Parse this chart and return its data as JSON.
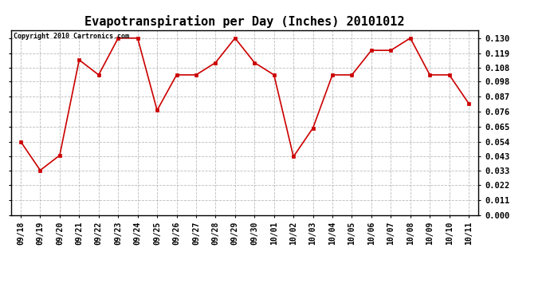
{
  "title": "Evapotranspiration per Day (Inches) 20101012",
  "copyright_text": "Copyright 2010 Cartronics.com",
  "x_labels": [
    "09/18",
    "09/19",
    "09/20",
    "09/21",
    "09/22",
    "09/23",
    "09/24",
    "09/25",
    "09/26",
    "09/27",
    "09/28",
    "09/29",
    "09/30",
    "10/01",
    "10/02",
    "10/03",
    "10/04",
    "10/05",
    "10/06",
    "10/07",
    "10/08",
    "10/09",
    "10/10",
    "10/11"
  ],
  "y_values": [
    0.054,
    0.033,
    0.044,
    0.114,
    0.103,
    0.13,
    0.13,
    0.077,
    0.103,
    0.103,
    0.112,
    0.13,
    0.112,
    0.103,
    0.043,
    0.064,
    0.103,
    0.103,
    0.121,
    0.121,
    0.13,
    0.103,
    0.103,
    0.082
  ],
  "line_color": "#cc0000",
  "marker_color": "#cc0000",
  "marker_size": 3,
  "line_width": 1.2,
  "y_ticks": [
    0.0,
    0.011,
    0.022,
    0.033,
    0.043,
    0.054,
    0.065,
    0.076,
    0.087,
    0.098,
    0.108,
    0.119,
    0.13
  ],
  "ylim": [
    0.0,
    0.136
  ],
  "background_color": "#ffffff",
  "grid_color": "#aaaaaa",
  "title_fontsize": 11,
  "copyright_fontsize": 6,
  "tick_fontsize": 7,
  "ytick_fontsize": 7.5
}
